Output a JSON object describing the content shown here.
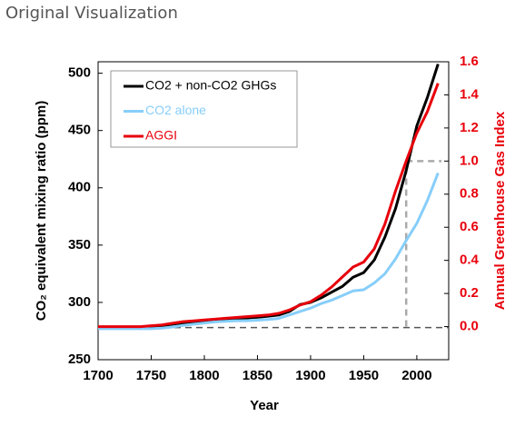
{
  "header": {
    "title": "Original Visualization"
  },
  "chart_data": {
    "type": "line",
    "xlabel": "Year",
    "ylabel": "CO₂ equivalent mixing ratio (ppm)",
    "y2label": "Annual Greenhouse Gas Index",
    "x": [
      1700,
      1710,
      1720,
      1730,
      1740,
      1750,
      1760,
      1770,
      1780,
      1790,
      1800,
      1810,
      1820,
      1830,
      1840,
      1850,
      1860,
      1870,
      1880,
      1890,
      1900,
      1910,
      1920,
      1930,
      1940,
      1950,
      1960,
      1970,
      1980,
      1990,
      2000,
      2010,
      2020
    ],
    "series": [
      {
        "name": "CO2 + non-CO2 GHGs",
        "color": "#000000",
        "axis": "y",
        "values": [
          278,
          278,
          278,
          278,
          278,
          278.5,
          279.5,
          281,
          282,
          283,
          284,
          285,
          285.5,
          286,
          286.5,
          287,
          288,
          289,
          292,
          298,
          300,
          304,
          309,
          314,
          322,
          326,
          337,
          357,
          382,
          415,
          454,
          479,
          508
        ]
      },
      {
        "name": "CO2 alone",
        "color": "#87cefa",
        "axis": "y",
        "values": [
          277,
          277,
          277,
          277,
          277,
          277,
          277.5,
          278.5,
          280,
          281,
          282,
          283,
          283.5,
          284,
          284,
          284.5,
          285,
          286,
          289,
          292,
          295,
          299,
          302,
          306,
          310,
          311,
          317,
          325,
          338,
          354,
          369,
          389,
          413
        ]
      },
      {
        "name": "AGGI",
        "color": "#e8000b",
        "axis": "y2",
        "values": [
          0,
          0,
          0,
          0,
          0,
          0.005,
          0.01,
          0.02,
          0.03,
          0.035,
          0.04,
          0.045,
          0.05,
          0.055,
          0.06,
          0.065,
          0.07,
          0.08,
          0.1,
          0.13,
          0.15,
          0.19,
          0.24,
          0.3,
          0.36,
          0.39,
          0.47,
          0.62,
          0.82,
          1.0,
          1.17,
          1.3,
          1.47
        ]
      }
    ],
    "reference_lines": {
      "y": 278,
      "x": 1990,
      "y2": 1.0
    },
    "xlim": [
      1700,
      2030
    ],
    "xticks": [
      1700,
      1750,
      1800,
      1850,
      1900,
      1950,
      2000
    ],
    "ylim": [
      250,
      510
    ],
    "yticks": [
      250,
      300,
      350,
      400,
      450,
      500
    ],
    "y2lim": [
      -0.2,
      1.6
    ],
    "y2ticks": [
      {
        "value": 0,
        "label": "0.0"
      },
      0.2,
      0.4,
      0.6,
      0.8,
      {
        "value": 1,
        "label": "1.0"
      },
      1.2,
      1.4,
      1.6
    ],
    "legend": "upper left"
  }
}
